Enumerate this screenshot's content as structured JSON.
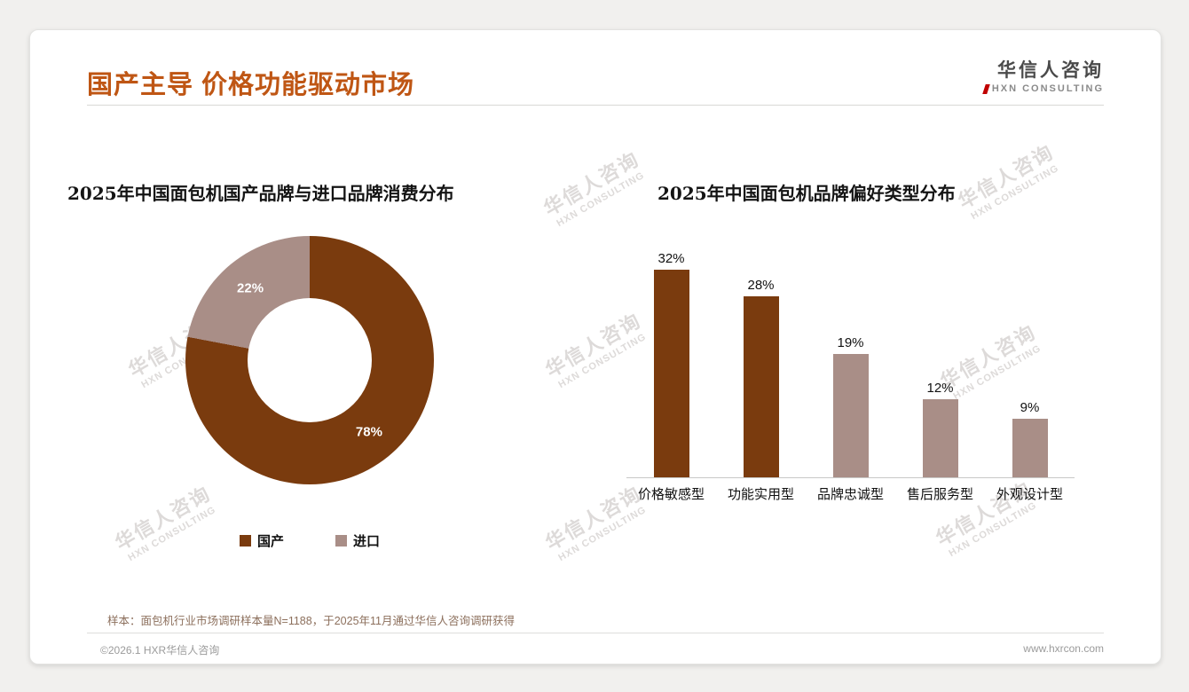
{
  "header": {
    "title": "国产主导 价格功能驱动市场",
    "logo": {
      "cn": "华信人咨询",
      "en": "HXN CONSULTING"
    }
  },
  "watermark": {
    "cn": "华信人咨询",
    "en": "HXN CONSULTING"
  },
  "colors": {
    "primary_brown": "#7a3b0e",
    "secondary_mauve": "#a98e87",
    "title_orange": "#bf5614",
    "logo_red": "#c00000"
  },
  "chart_data": [
    {
      "type": "pie",
      "donut": true,
      "title": "2025年中国面包机国产品牌与进口品牌消费分布",
      "labels": [
        "国产",
        "进口"
      ],
      "values": [
        78,
        22
      ],
      "value_labels": [
        "78%",
        "22%"
      ],
      "colors": [
        "#7a3b0e",
        "#a98e87"
      ],
      "legend_position": "bottom"
    },
    {
      "type": "bar",
      "title": "2025年中国面包机品牌偏好类型分布",
      "categories": [
        "价格敏感型",
        "功能实用型",
        "品牌忠诚型",
        "售后服务型",
        "外观设计型"
      ],
      "values": [
        32,
        28,
        19,
        12,
        9
      ],
      "value_labels": [
        "32%",
        "28%",
        "19%",
        "12%",
        "9%"
      ],
      "bar_colors": [
        "#7a3b0e",
        "#7a3b0e",
        "#a98e87",
        "#a98e87",
        "#a98e87"
      ],
      "ylim": [
        0,
        35
      ],
      "grid": false,
      "legend": false
    }
  ],
  "footer": {
    "note": "样本：面包机行业市场调研样本量N=1188，于2025年11月通过华信人咨询调研获得",
    "copyright": "©2026.1 HXR华信人咨询",
    "website": "www.hxrcon.com"
  }
}
